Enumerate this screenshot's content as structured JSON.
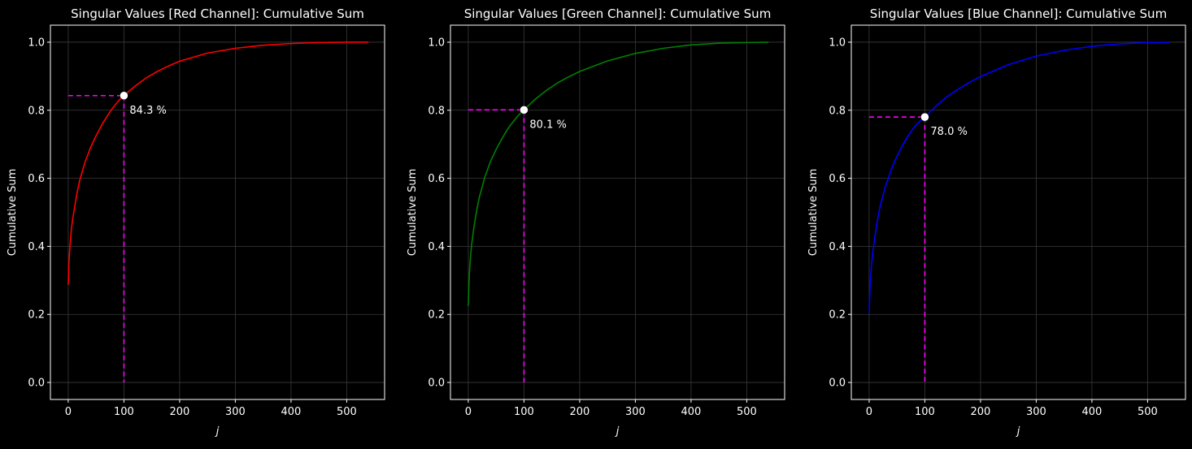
{
  "chart_data": [
    {
      "type": "line",
      "title": "Singular Values [Red Channel]: Cumulative Sum",
      "xlabel": "j",
      "ylabel": "Cumulative Sum",
      "xlim": [
        -32,
        568
      ],
      "ylim": [
        -0.05,
        1.05
      ],
      "xticks": [
        0,
        100,
        200,
        300,
        400,
        500
      ],
      "yticks": [
        0.0,
        0.2,
        0.4,
        0.6,
        0.8,
        1.0
      ],
      "grid": true,
      "series": [
        {
          "color": "#ff0000",
          "x": [
            0,
            1,
            2,
            4,
            6,
            8,
            10,
            15,
            20,
            30,
            40,
            50,
            60,
            70,
            80,
            90,
            100,
            120,
            140,
            160,
            180,
            200,
            250,
            300,
            350,
            400,
            450,
            500,
            539
          ],
          "y": [
            0.287,
            0.34,
            0.375,
            0.42,
            0.455,
            0.48,
            0.5,
            0.55,
            0.59,
            0.647,
            0.69,
            0.725,
            0.756,
            0.783,
            0.807,
            0.827,
            0.843,
            0.871,
            0.895,
            0.914,
            0.93,
            0.944,
            0.968,
            0.982,
            0.991,
            0.996,
            0.999,
            1.0,
            1.0
          ]
        }
      ],
      "highlight": {
        "x": 100,
        "y": 0.843,
        "label": "84.3 %",
        "guide_color": "#ff00ff"
      }
    },
    {
      "type": "line",
      "title": "Singular Values [Green Channel]: Cumulative Sum",
      "xlabel": "j",
      "ylabel": "Cumulative Sum",
      "xlim": [
        -32,
        568
      ],
      "ylim": [
        -0.05,
        1.05
      ],
      "xticks": [
        0,
        100,
        200,
        300,
        400,
        500
      ],
      "yticks": [
        0.0,
        0.2,
        0.4,
        0.6,
        0.8,
        1.0
      ],
      "grid": true,
      "series": [
        {
          "color": "#008000",
          "x": [
            0,
            1,
            2,
            4,
            6,
            8,
            10,
            15,
            20,
            30,
            40,
            50,
            60,
            70,
            80,
            90,
            100,
            120,
            140,
            160,
            180,
            200,
            250,
            300,
            350,
            400,
            450,
            500,
            539
          ],
          "y": [
            0.225,
            0.28,
            0.32,
            0.37,
            0.405,
            0.43,
            0.455,
            0.505,
            0.545,
            0.605,
            0.65,
            0.685,
            0.715,
            0.743,
            0.765,
            0.785,
            0.801,
            0.832,
            0.858,
            0.88,
            0.898,
            0.914,
            0.945,
            0.967,
            0.982,
            0.992,
            0.997,
            0.999,
            1.0
          ]
        }
      ],
      "highlight": {
        "x": 100,
        "y": 0.801,
        "label": "80.1 %",
        "guide_color": "#ff00ff"
      }
    },
    {
      "type": "line",
      "title": "Singular Values [Blue Channel]: Cumulative Sum",
      "xlabel": "j",
      "ylabel": "Cumulative Sum",
      "xlim": [
        -32,
        568
      ],
      "ylim": [
        -0.05,
        1.05
      ],
      "xticks": [
        0,
        100,
        200,
        300,
        400,
        500
      ],
      "yticks": [
        0.0,
        0.2,
        0.4,
        0.6,
        0.8,
        1.0
      ],
      "grid": true,
      "series": [
        {
          "color": "#0000ff",
          "x": [
            0,
            1,
            2,
            4,
            6,
            8,
            10,
            15,
            20,
            30,
            40,
            50,
            60,
            70,
            80,
            90,
            100,
            120,
            140,
            160,
            180,
            200,
            250,
            300,
            350,
            400,
            450,
            500,
            539
          ],
          "y": [
            0.205,
            0.255,
            0.29,
            0.34,
            0.375,
            0.4,
            0.425,
            0.478,
            0.52,
            0.58,
            0.627,
            0.665,
            0.697,
            0.725,
            0.748,
            0.766,
            0.78,
            0.812,
            0.84,
            0.862,
            0.882,
            0.899,
            0.934,
            0.959,
            0.976,
            0.988,
            0.995,
            0.999,
            1.0
          ]
        }
      ],
      "highlight": {
        "x": 100,
        "y": 0.78,
        "label": "78.0 %",
        "guide_color": "#ff00ff"
      }
    }
  ]
}
